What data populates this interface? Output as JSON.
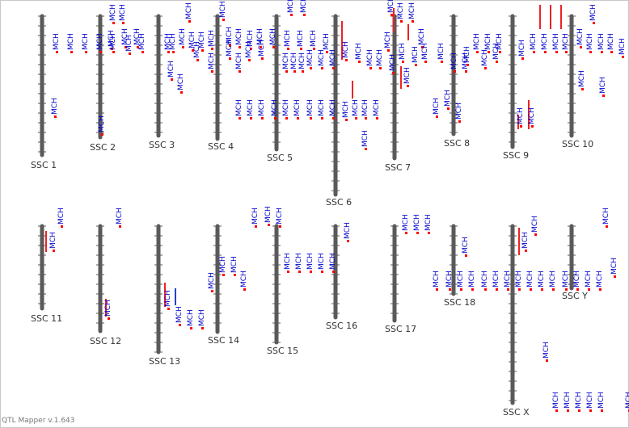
{
  "footer": "QTL Mapper v.1.643",
  "colors": {
    "chromosome": "#5a5a5a",
    "trait_label": "#0000cc",
    "marker": "#ff0000",
    "ci_bar_red": "#ee2222",
    "ci_bar_blue": "#2244cc",
    "chrom_label": "#333333",
    "frame": "#c8c8c8"
  },
  "trait": "MCH",
  "chromosomes": [
    {
      "name": "SSC 1"
    },
    {
      "name": "SSC 2"
    },
    {
      "name": "SSC 3"
    },
    {
      "name": "SSC 4"
    },
    {
      "name": "SSC 5"
    },
    {
      "name": "SSC 6"
    },
    {
      "name": "SSC 7"
    },
    {
      "name": "SSC 8"
    },
    {
      "name": "SSC 9"
    },
    {
      "name": "SSC 10"
    },
    {
      "name": "SSC 11"
    },
    {
      "name": "SSC 12"
    },
    {
      "name": "SSC 13"
    },
    {
      "name": "SSC 14"
    },
    {
      "name": "SSC 15"
    },
    {
      "name": "SSC 16"
    },
    {
      "name": "SSC 17"
    },
    {
      "name": "SSC 18"
    },
    {
      "name": "SSC X"
    },
    {
      "name": "SSC Y"
    }
  ]
}
